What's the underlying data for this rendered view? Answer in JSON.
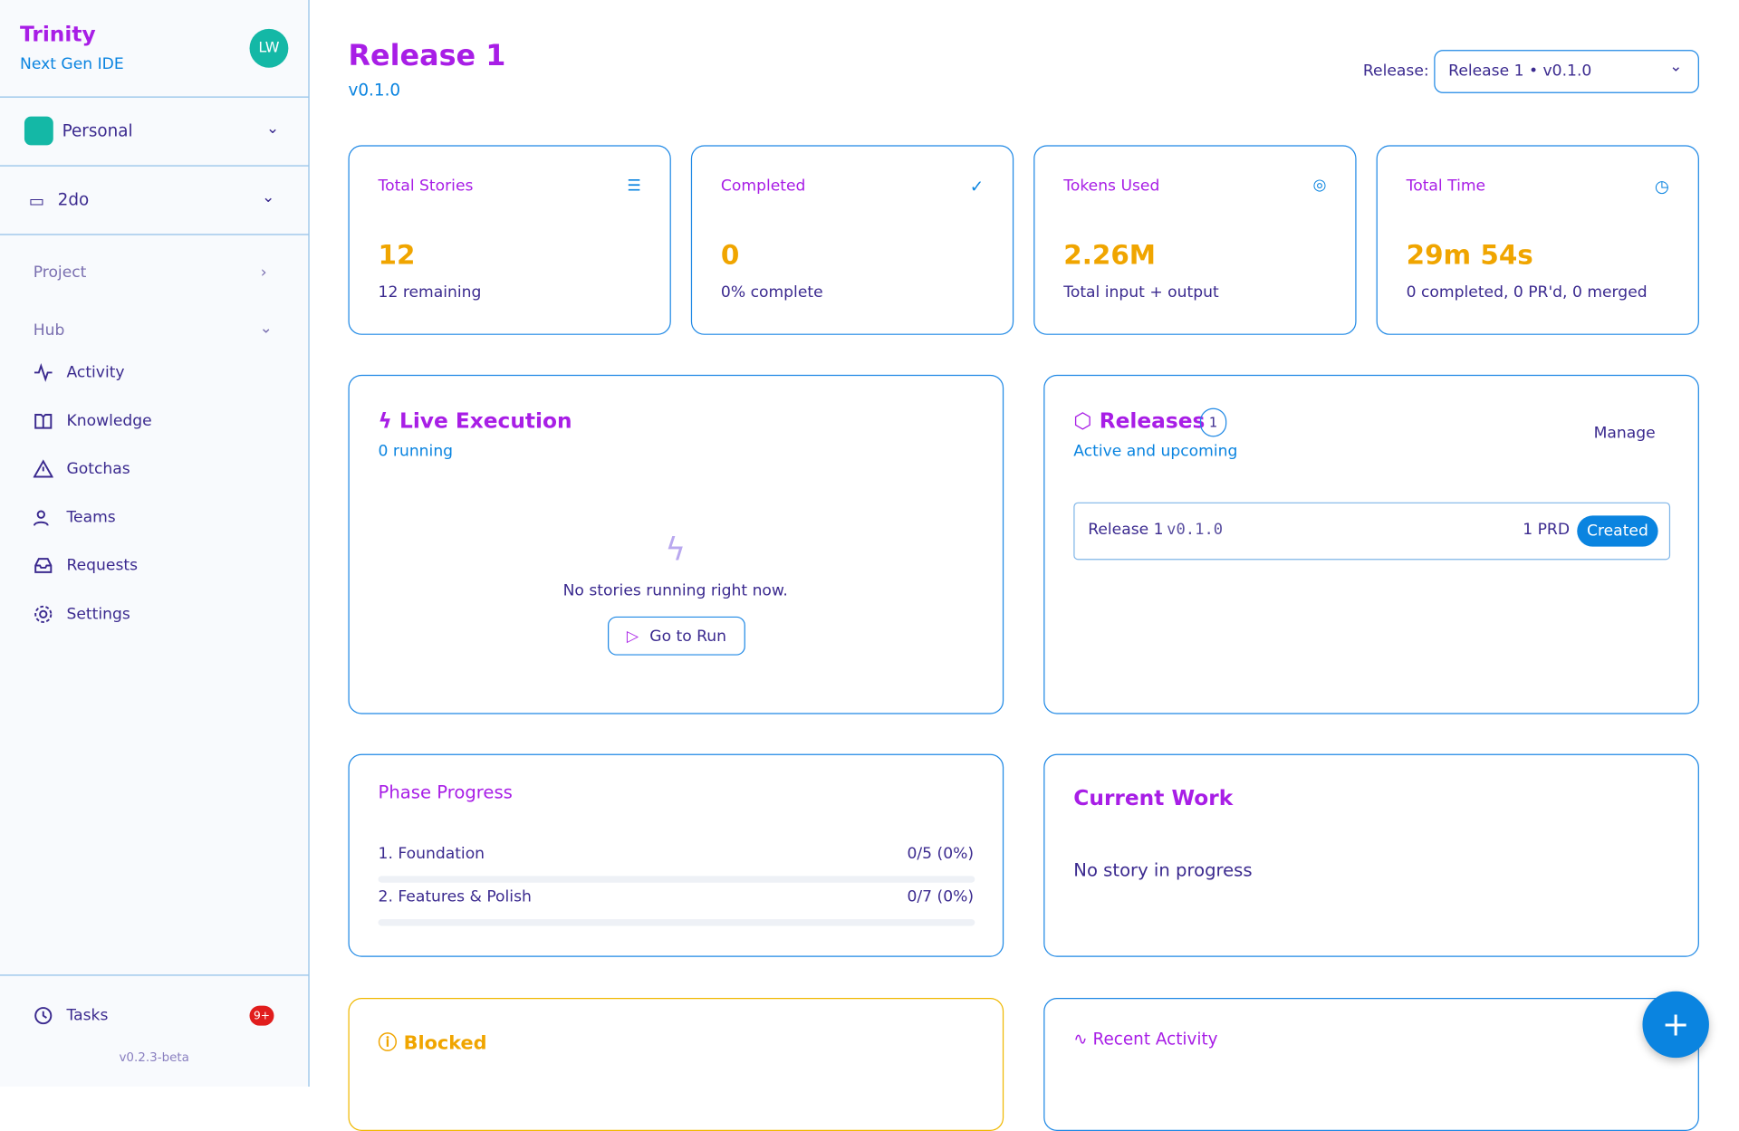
{
  "sidebar": {
    "brand": "Trinity",
    "tagline": "Next Gen IDE",
    "avatar": "LW",
    "workspace": "Personal",
    "project": "2do",
    "section_project": "Project",
    "section_hub": "Hub",
    "nav": [
      "Activity",
      "Knowledge",
      "Gotchas",
      "Teams",
      "Requests",
      "Settings"
    ],
    "tasks": "Tasks",
    "tasks_badge": "9+",
    "version": "v0.2.3-beta"
  },
  "header": {
    "title": "Release 1",
    "version": "v0.1.0",
    "selector_label": "Release:",
    "selector_value": "Release 1 • v0.1.0"
  },
  "stats": [
    {
      "label": "Total Stories",
      "value": "12",
      "sub": "12 remaining"
    },
    {
      "label": "Completed",
      "value": "0",
      "sub": "0% complete"
    },
    {
      "label": "Tokens Used",
      "value": "2.26M",
      "sub": "Total input + output"
    },
    {
      "label": "Total Time",
      "value": "29m 54s",
      "sub": "0 completed, 0 PR'd, 0 merged"
    }
  ],
  "live": {
    "title": "Live Execution",
    "subtitle": "0 running",
    "empty": "No stories running right now.",
    "button": "Go to Run"
  },
  "releases": {
    "title": "Releases",
    "count": "1",
    "subtitle": "Active and upcoming",
    "manage": "Manage",
    "item": {
      "name": "Release 1",
      "version": "v0.1.0",
      "prd": "1 PRD",
      "status": "Created"
    }
  },
  "phase": {
    "title": "Phase Progress",
    "phases": [
      {
        "name": "1. Foundation",
        "progress": "0/5 (0%)"
      },
      {
        "name": "2. Features & Polish",
        "progress": "0/7 (0%)"
      }
    ]
  },
  "current": {
    "title": "Current Work",
    "text": "No story in progress"
  },
  "blocked": {
    "title": "Blocked"
  },
  "recent": {
    "title": "Recent Activity"
  }
}
